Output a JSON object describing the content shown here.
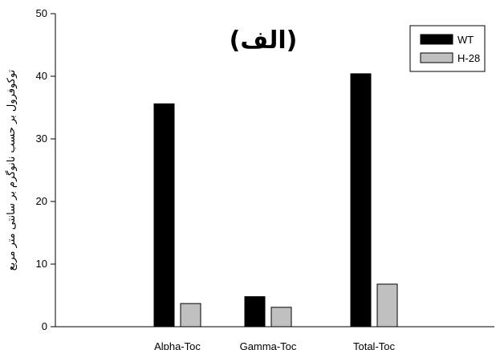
{
  "chart_data": {
    "type": "bar",
    "title": "(الف)",
    "ylabel": "توکوفرول بر حسب نانوگرم بر سانتی متر مربع",
    "xlabel": "",
    "categories": [
      "Alpha-Toc",
      "Gamma-Toc",
      "Total-Toc"
    ],
    "series": [
      {
        "name": "WT",
        "color": "#000000",
        "values": [
          35.6,
          4.8,
          40.4
        ]
      },
      {
        "name": "H-28",
        "color": "#c0c0c0",
        "values": [
          3.7,
          3.1,
          6.8
        ]
      }
    ],
    "ylim": [
      0,
      50
    ],
    "yticks": [
      "0",
      "10",
      "20",
      "30",
      "40",
      "50"
    ],
    "grid": false,
    "legend_position": "top-right"
  }
}
